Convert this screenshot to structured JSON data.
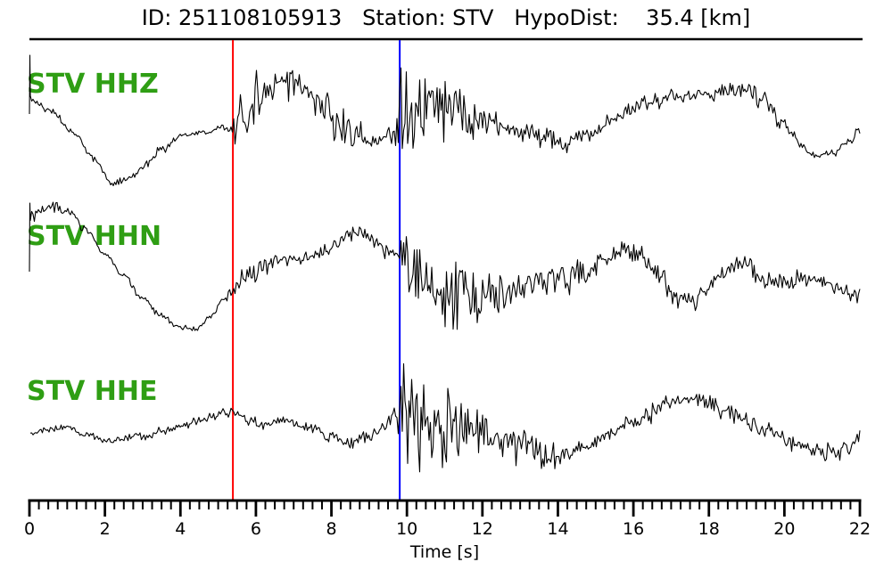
{
  "header": {
    "title_text": "ID: 251108105913   Station: STV   HypoDist:    35.4 [km]"
  },
  "chart_data": {
    "type": "line",
    "title": "ID: 251108105913   Station: STV   HypoDist:    35.4 [km]",
    "event_id": "251108105913",
    "station": "STV",
    "hypodist_km": 35.4,
    "xlabel": "Time [s]",
    "x_range": [
      0,
      22
    ],
    "x_ticks": [
      0,
      2,
      4,
      6,
      8,
      10,
      12,
      14,
      16,
      18,
      20,
      22
    ],
    "minor_tick_interval_s": 0.25,
    "grid": false,
    "legend": false,
    "trace_color": "#000000",
    "label_color": "#2f9e14",
    "axis_color": "#000000",
    "picks": [
      {
        "name": "P-pick",
        "time_s": 5.39,
        "color": "#ff0000"
      },
      {
        "name": "S-pick",
        "time_s": 9.81,
        "color": "#0000ff"
      }
    ],
    "channels": [
      {
        "label": "STV HHZ",
        "seed": 7,
        "clamp": [
          55,
          214
        ],
        "start_spike": [
          128,
          62
        ],
        "drift": [
          [
            0,
            112
          ],
          [
            0.6,
            125
          ],
          [
            1.2,
            150
          ],
          [
            1.7,
            178
          ],
          [
            2.2,
            206
          ],
          [
            2.6,
            200
          ],
          [
            3.0,
            188
          ],
          [
            3.5,
            168
          ],
          [
            4.0,
            152
          ],
          [
            4.6,
            149
          ],
          [
            5.1,
            143
          ],
          [
            5.4,
            148
          ],
          [
            5.8,
            125
          ],
          [
            6.3,
            95
          ],
          [
            6.8,
            88
          ],
          [
            7.2,
            95
          ],
          [
            7.7,
            115
          ],
          [
            8.2,
            140
          ],
          [
            8.7,
            155
          ],
          [
            9.2,
            158
          ],
          [
            9.6,
            152
          ],
          [
            9.85,
            135
          ],
          [
            10.3,
            120
          ],
          [
            10.8,
            115
          ],
          [
            11.3,
            122
          ],
          [
            11.8,
            132
          ],
          [
            12.3,
            141
          ],
          [
            13.0,
            148
          ],
          [
            13.6,
            155
          ],
          [
            14.2,
            162
          ],
          [
            14.8,
            150
          ],
          [
            15.4,
            135
          ],
          [
            16.0,
            122
          ],
          [
            16.6,
            113
          ],
          [
            17.2,
            108
          ],
          [
            17.8,
            107
          ],
          [
            18.4,
            103
          ],
          [
            18.9,
            100
          ],
          [
            19.4,
            112
          ],
          [
            19.9,
            135
          ],
          [
            20.4,
            160
          ],
          [
            20.8,
            177
          ],
          [
            21.3,
            172
          ],
          [
            21.7,
            160
          ],
          [
            22,
            148
          ]
        ],
        "envelope": [
          [
            0,
            3.5
          ],
          [
            5.3,
            3.5
          ],
          [
            5.45,
            20
          ],
          [
            5.8,
            26
          ],
          [
            6.6,
            30
          ],
          [
            7.4,
            24
          ],
          [
            8.2,
            14
          ],
          [
            9.0,
            10
          ],
          [
            9.6,
            11
          ],
          [
            9.85,
            58
          ],
          [
            10.4,
            38
          ],
          [
            11.0,
            28
          ],
          [
            12.0,
            17
          ],
          [
            13.0,
            13
          ],
          [
            14.0,
            10
          ],
          [
            15.0,
            10
          ],
          [
            16.0,
            9
          ],
          [
            17.0,
            9
          ],
          [
            18.0,
            9
          ],
          [
            19.0,
            8
          ],
          [
            20.0,
            7
          ],
          [
            21.0,
            6
          ],
          [
            22,
            6
          ]
        ]
      },
      {
        "label": "STV HHN",
        "seed": 13,
        "clamp": [
          220,
          412
        ],
        "start_spike": [
          305,
          228
        ],
        "drift": [
          [
            0,
            248
          ],
          [
            0.3,
            237
          ],
          [
            0.7,
            232
          ],
          [
            1.1,
            240
          ],
          [
            1.5,
            258
          ],
          [
            2.0,
            285
          ],
          [
            2.5,
            310
          ],
          [
            3.0,
            335
          ],
          [
            3.5,
            355
          ],
          [
            4.0,
            368
          ],
          [
            4.4,
            370
          ],
          [
            4.8,
            355
          ],
          [
            5.2,
            335
          ],
          [
            5.4,
            325
          ],
          [
            5.8,
            310
          ],
          [
            6.2,
            298
          ],
          [
            6.6,
            292
          ],
          [
            7.0,
            292
          ],
          [
            7.4,
            288
          ],
          [
            7.8,
            280
          ],
          [
            8.2,
            272
          ],
          [
            8.6,
            262
          ],
          [
            8.85,
            258
          ],
          [
            9.1,
            268
          ],
          [
            9.4,
            280
          ],
          [
            9.7,
            285
          ],
          [
            9.85,
            295
          ],
          [
            10.2,
            310
          ],
          [
            10.7,
            322
          ],
          [
            11.2,
            332
          ],
          [
            11.7,
            337
          ],
          [
            12.2,
            333
          ],
          [
            12.7,
            328
          ],
          [
            13.2,
            322
          ],
          [
            13.7,
            318
          ],
          [
            14.2,
            312
          ],
          [
            14.7,
            305
          ],
          [
            15.2,
            292
          ],
          [
            15.7,
            280
          ],
          [
            16.1,
            285
          ],
          [
            16.6,
            305
          ],
          [
            17.1,
            330
          ],
          [
            17.5,
            340
          ],
          [
            17.9,
            330
          ],
          [
            18.3,
            308
          ],
          [
            18.7,
            297
          ],
          [
            19.1,
            302
          ],
          [
            19.5,
            315
          ],
          [
            20.0,
            318
          ],
          [
            20.5,
            312
          ],
          [
            21.0,
            315
          ],
          [
            21.4,
            322
          ],
          [
            21.8,
            330
          ],
          [
            22,
            332
          ]
        ],
        "envelope": [
          [
            0,
            6
          ],
          [
            1.2,
            5
          ],
          [
            1.8,
            3
          ],
          [
            4.8,
            3
          ],
          [
            5.4,
            7
          ],
          [
            6.5,
            8
          ],
          [
            8.8,
            8
          ],
          [
            9.5,
            9
          ],
          [
            9.75,
            12
          ],
          [
            9.9,
            68
          ],
          [
            10.3,
            48
          ],
          [
            10.8,
            38
          ],
          [
            11.5,
            26
          ],
          [
            12.5,
            20
          ],
          [
            13.5,
            15
          ],
          [
            14.5,
            12
          ],
          [
            15.7,
            12
          ],
          [
            16.8,
            10
          ],
          [
            18.0,
            10
          ],
          [
            19.0,
            9
          ],
          [
            20.0,
            8
          ],
          [
            21.0,
            8
          ],
          [
            22,
            7
          ]
        ]
      },
      {
        "label": "STV HHE",
        "seed": 21,
        "clamp": [
          394,
          544
        ],
        "start_spike": null,
        "drift": [
          [
            0,
            487
          ],
          [
            0.5,
            482
          ],
          [
            1.0,
            480
          ],
          [
            1.5,
            488
          ],
          [
            2.0,
            494
          ],
          [
            2.5,
            492
          ],
          [
            3.0,
            490
          ],
          [
            3.5,
            485
          ],
          [
            4.0,
            480
          ],
          [
            4.5,
            472
          ],
          [
            5.0,
            466
          ],
          [
            5.4,
            462
          ],
          [
            5.8,
            472
          ],
          [
            6.2,
            478
          ],
          [
            6.6,
            472
          ],
          [
            7.0,
            474
          ],
          [
            7.5,
            482
          ],
          [
            8.0,
            490
          ],
          [
            8.5,
            497
          ],
          [
            9.0,
            490
          ],
          [
            9.4,
            478
          ],
          [
            9.7,
            462
          ],
          [
            9.85,
            465
          ],
          [
            10.2,
            470
          ],
          [
            10.7,
            475
          ],
          [
            11.2,
            478
          ],
          [
            11.7,
            482
          ],
          [
            12.2,
            488
          ],
          [
            12.7,
            495
          ],
          [
            13.2,
            503
          ],
          [
            13.7,
            510
          ],
          [
            14.2,
            508
          ],
          [
            14.7,
            503
          ],
          [
            15.2,
            492
          ],
          [
            15.7,
            480
          ],
          [
            16.2,
            468
          ],
          [
            16.7,
            458
          ],
          [
            17.2,
            450
          ],
          [
            17.6,
            448
          ],
          [
            18.0,
            452
          ],
          [
            18.5,
            462
          ],
          [
            19.0,
            472
          ],
          [
            19.5,
            483
          ],
          [
            20.0,
            494
          ],
          [
            20.5,
            502
          ],
          [
            21.0,
            507
          ],
          [
            21.3,
            508
          ],
          [
            21.7,
            500
          ],
          [
            22,
            490
          ]
        ],
        "envelope": [
          [
            0,
            4
          ],
          [
            5.0,
            4
          ],
          [
            5.4,
            6
          ],
          [
            7.0,
            6
          ],
          [
            8.6,
            7
          ],
          [
            9.4,
            7
          ],
          [
            9.7,
            12
          ],
          [
            9.9,
            62
          ],
          [
            10.3,
            45
          ],
          [
            10.8,
            37
          ],
          [
            11.4,
            31
          ],
          [
            12.0,
            25
          ],
          [
            12.6,
            20
          ],
          [
            13.2,
            15
          ],
          [
            14.0,
            11
          ],
          [
            15.0,
            9
          ],
          [
            16.5,
            9
          ],
          [
            17.5,
            10
          ],
          [
            18.5,
            9
          ],
          [
            19.5,
            8
          ],
          [
            20.5,
            8
          ],
          [
            21.2,
            9
          ],
          [
            22,
            7
          ]
        ]
      }
    ]
  }
}
